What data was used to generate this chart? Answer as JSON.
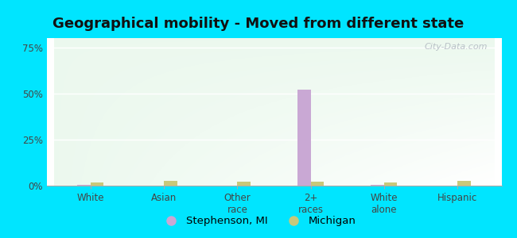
{
  "title": "Geographical mobility - Moved from different state",
  "categories": [
    "White",
    "Asian",
    "Other\nrace",
    "2+\nraces",
    "White\nalone",
    "Hispanic"
  ],
  "stephenson_values": [
    0.5,
    0.0,
    0.0,
    52.0,
    0.5,
    0.0
  ],
  "michigan_values": [
    1.8,
    2.5,
    2.2,
    2.3,
    1.8,
    2.5
  ],
  "stephenson_color": "#c9a8d4",
  "michigan_color": "#c8c87a",
  "bar_width": 0.18,
  "ylim": [
    0,
    80
  ],
  "yticks": [
    0,
    25,
    50,
    75
  ],
  "ytick_labels": [
    "0%",
    "25%",
    "50%",
    "75%"
  ],
  "outer_background": "#00e5ff",
  "grid_color": "#ffffff",
  "title_fontsize": 13,
  "tick_fontsize": 8.5,
  "legend_fontsize": 9.5,
  "watermark_text": "City-Data.com"
}
